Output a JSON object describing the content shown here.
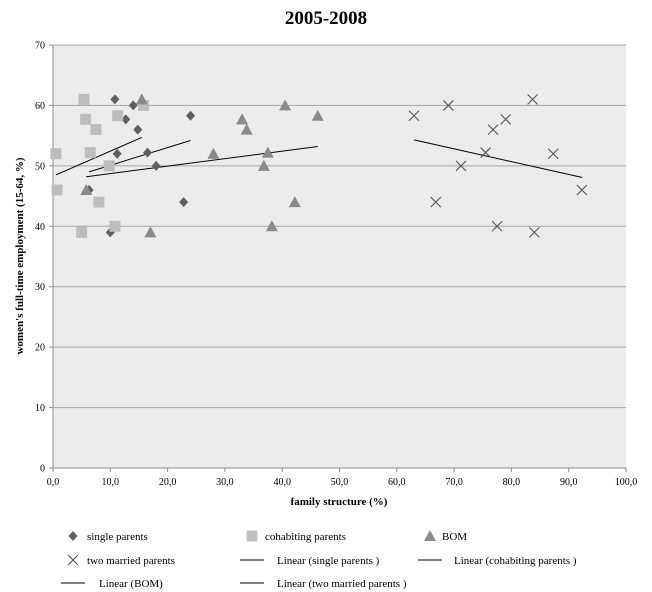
{
  "chart_data": {
    "type": "scatter",
    "title": "2005-2008",
    "xlabel": "family structure (%)",
    "ylabel": "women's full-time employment (15-64, %)",
    "xlim": [
      0,
      100
    ],
    "ylim": [
      0,
      70
    ],
    "x_ticks": [
      "0,0",
      "10,0",
      "20,0",
      "30,0",
      "40,0",
      "50,0",
      "60,0",
      "70,0",
      "80,0",
      "90,0",
      "100,0"
    ],
    "x_tick_values": [
      0,
      10,
      20,
      30,
      40,
      50,
      60,
      70,
      80,
      90,
      100
    ],
    "y_ticks": [
      "0",
      "10",
      "20",
      "30",
      "40",
      "50",
      "60",
      "70"
    ],
    "y_tick_values": [
      0,
      10,
      20,
      30,
      40,
      50,
      60,
      70
    ],
    "grid": true,
    "legend_position": "bottom",
    "series": [
      {
        "name": "single parents",
        "marker": "diamond",
        "color": "#5f5f5f",
        "points": [
          [
            6.3,
            46
          ],
          [
            10,
            39
          ],
          [
            10.8,
            61
          ],
          [
            11.2,
            52
          ],
          [
            12.7,
            57.7
          ],
          [
            14,
            60
          ],
          [
            14.8,
            56
          ],
          [
            16.5,
            52.2
          ],
          [
            18,
            50
          ],
          [
            22.8,
            44
          ],
          [
            24,
            58.3
          ]
        ]
      },
      {
        "name": "cohabiting parents",
        "marker": "square",
        "color": "#bdbdbd",
        "points": [
          [
            0.5,
            52
          ],
          [
            0.7,
            46
          ],
          [
            5,
            39
          ],
          [
            5.4,
            61
          ],
          [
            5.7,
            57.7
          ],
          [
            6.5,
            52.2
          ],
          [
            7.5,
            56
          ],
          [
            8,
            44
          ],
          [
            9.8,
            50
          ],
          [
            10.8,
            40
          ],
          [
            11.3,
            58.3
          ],
          [
            15.8,
            60
          ]
        ]
      },
      {
        "name": "BOM",
        "marker": "triangle",
        "color": "#8a8a8a",
        "points": [
          [
            5.8,
            46
          ],
          [
            15.5,
            61
          ],
          [
            17,
            39
          ],
          [
            28,
            52
          ],
          [
            33,
            57.7
          ],
          [
            33.8,
            56
          ],
          [
            36.8,
            50
          ],
          [
            37.5,
            52.2
          ],
          [
            38.2,
            40
          ],
          [
            40.5,
            60
          ],
          [
            42.2,
            44
          ],
          [
            46.2,
            58.3
          ]
        ]
      },
      {
        "name": "two married parents",
        "marker": "x",
        "color": "#555555",
        "points": [
          [
            63,
            58.3
          ],
          [
            66.8,
            44
          ],
          [
            69,
            60
          ],
          [
            71.2,
            50
          ],
          [
            75.5,
            52.2
          ],
          [
            76.8,
            56
          ],
          [
            77.5,
            40
          ],
          [
            79,
            57.7
          ],
          [
            83.7,
            61
          ],
          [
            84,
            39
          ],
          [
            87.3,
            52
          ],
          [
            92.3,
            46
          ]
        ]
      }
    ],
    "trendlines": [
      {
        "name": "Linear (single parents )",
        "x": [
          0.5,
          15.5
        ],
        "y": [
          48.5,
          54.7
        ]
      },
      {
        "name": "Linear (cohabiting parents )",
        "x": [
          6.3,
          24
        ],
        "y": [
          49,
          54.2
        ]
      },
      {
        "name": "Linear (BOM)",
        "x": [
          5.8,
          46.2
        ],
        "y": [
          48.2,
          53.2
        ]
      },
      {
        "name": "Linear (two married parents )",
        "x": [
          63,
          92.3
        ],
        "y": [
          54.3,
          48.1
        ]
      }
    ]
  }
}
